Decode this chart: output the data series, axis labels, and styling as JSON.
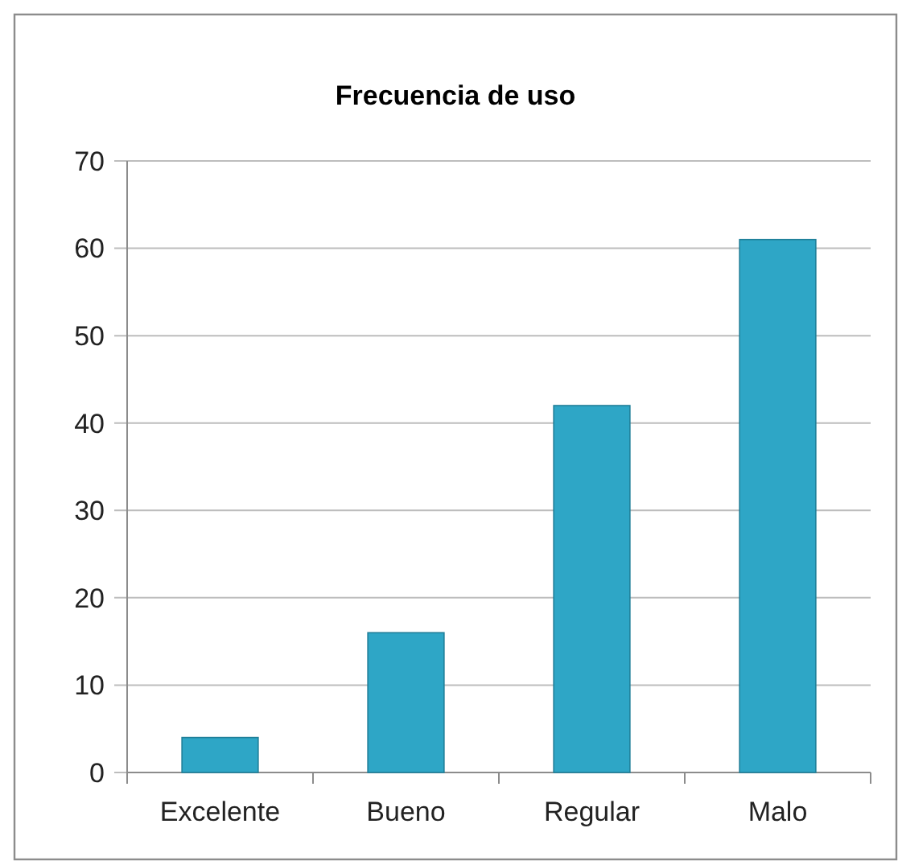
{
  "chart_data": {
    "type": "bar",
    "title": "Frecuencia de uso",
    "categories": [
      "Excelente",
      "Bueno",
      "Regular",
      "Malo"
    ],
    "values": [
      4,
      16,
      42,
      61
    ],
    "color": "#2ea6c6",
    "ylim": [
      0,
      70
    ],
    "yticks": [
      0,
      10,
      20,
      30,
      40,
      50,
      60,
      70
    ],
    "grid": "y"
  }
}
